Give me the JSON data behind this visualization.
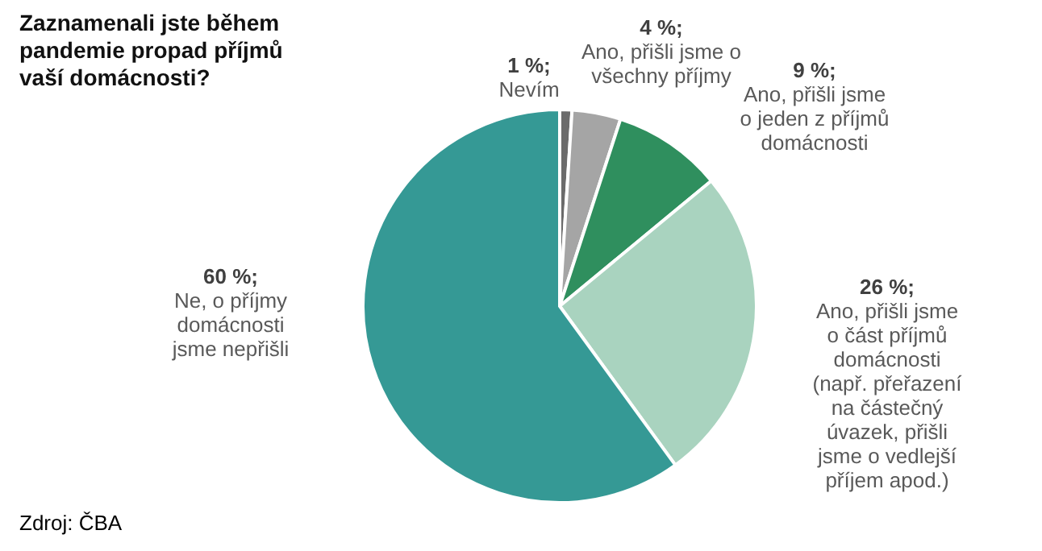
{
  "chart_data": {
    "type": "pie",
    "title": "Zaznamenali jste během pandemie propad příjmů vaší domácnosti?",
    "categories": [
      "Nevím",
      "Ano, přišli jsme o všechny příjmy",
      "Ano, přišli jsme o jeden z příjmů domácnosti",
      "Ano, přišli jsme o část příjmů domácnosti (např. přeřazení na částečný úvazek, přišli jsme o vedlejší příjem apod.)",
      "Ne, o příjmy domácnosti jsme nepřišli"
    ],
    "values": [
      1,
      4,
      9,
      26,
      60
    ],
    "value_labels": [
      "1 %;",
      "4 %;",
      "9 %;",
      "26 %;",
      "60 %;"
    ],
    "colors": [
      "#6b6b6b",
      "#a5a5a5",
      "#2f8f5e",
      "#a9d3bf",
      "#359995"
    ],
    "annotations": [
      "Zdroj: ČBA"
    ]
  }
}
